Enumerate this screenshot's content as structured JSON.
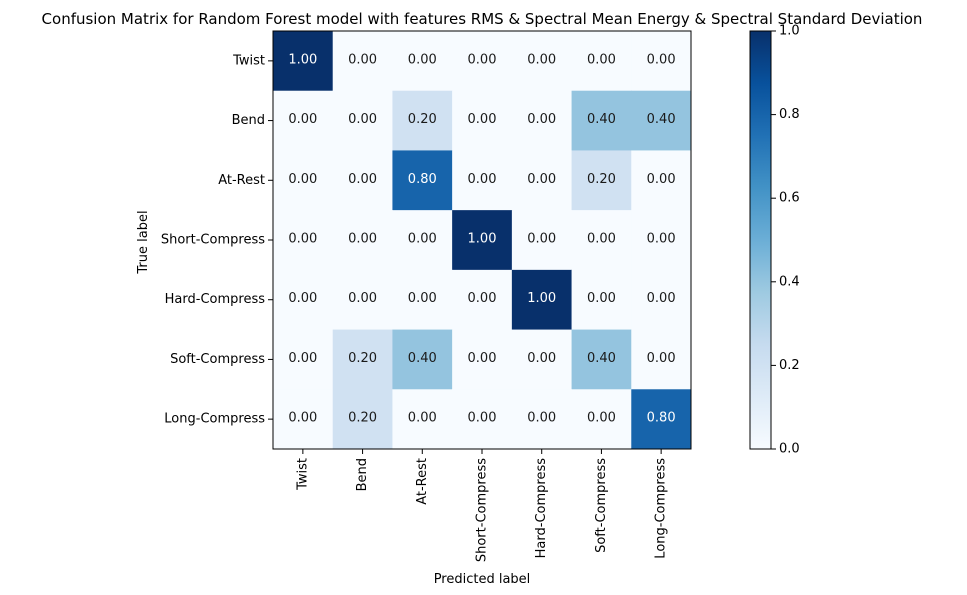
{
  "chart_data": {
    "type": "heatmap",
    "title": "Confusion Matrix for Random Forest model with features RMS & Spectral Mean Energy & Spectral Standard Deviation",
    "xlabel": "Predicted label",
    "ylabel": "True label",
    "row_labels": [
      "Twist",
      "Bend",
      "At-Rest",
      "Short-Compress",
      "Hard-Compress",
      "Soft-Compress",
      "Long-Compress"
    ],
    "col_labels": [
      "Twist",
      "Bend",
      "At-Rest",
      "Short-Compress",
      "Hard-Compress",
      "Soft-Compress",
      "Long-Compress"
    ],
    "values": [
      [
        1.0,
        0.0,
        0.0,
        0.0,
        0.0,
        0.0,
        0.0
      ],
      [
        0.0,
        0.0,
        0.2,
        0.0,
        0.0,
        0.4,
        0.4
      ],
      [
        0.0,
        0.0,
        0.8,
        0.0,
        0.0,
        0.2,
        0.0
      ],
      [
        0.0,
        0.0,
        0.0,
        1.0,
        0.0,
        0.0,
        0.0
      ],
      [
        0.0,
        0.0,
        0.0,
        0.0,
        1.0,
        0.0,
        0.0
      ],
      [
        0.0,
        0.2,
        0.4,
        0.0,
        0.0,
        0.4,
        0.0
      ],
      [
        0.0,
        0.2,
        0.0,
        0.0,
        0.0,
        0.0,
        0.8
      ]
    ],
    "value_format": "0.00",
    "colormap": "Blues",
    "colormap_stops": [
      "#f7fbff",
      "#deebf7",
      "#c6dbef",
      "#9ecae1",
      "#6baed6",
      "#4292c6",
      "#2171b5",
      "#08519c",
      "#08306b"
    ],
    "text_color_light": "#ffffff",
    "text_color_dark": "#1a1a1a",
    "colorbar": {
      "range": [
        0.0,
        1.0
      ],
      "ticks": [
        0.0,
        0.2,
        0.4,
        0.6,
        0.8,
        1.0
      ],
      "tick_labels": [
        "0.0",
        "0.2",
        "0.4",
        "0.6",
        "0.8",
        "1.0"
      ]
    },
    "grid": false
  }
}
